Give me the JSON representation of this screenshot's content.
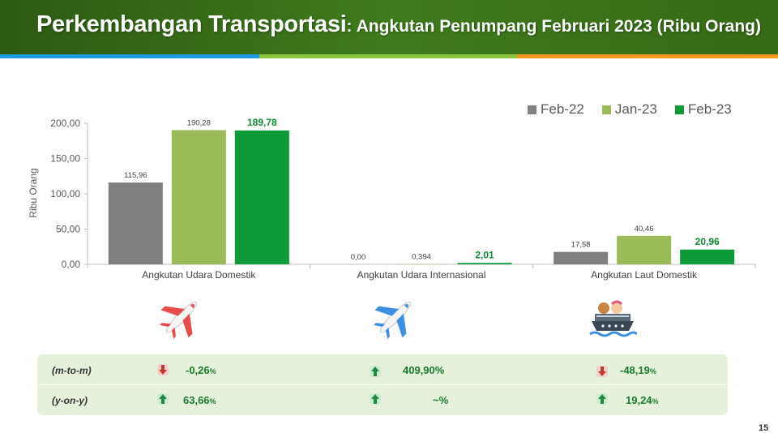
{
  "header": {
    "title_main": "Perkembangan Transportasi",
    "title_sub": ": Angkutan Penumpang Februari 2023 (Ribu Orang)"
  },
  "colors": {
    "feb22": "#7f7f7f",
    "jan23": "#9bbb59",
    "feb23": "#0f9a3a"
  },
  "chart_data": {
    "type": "bar",
    "categories": [
      "Angkutan Udara Domestik",
      "Angkutan Udara Internasional",
      "Angkutan Laut Domestik"
    ],
    "series": [
      {
        "name": "Feb-22",
        "values": [
          115.96,
          0.0,
          17.58
        ],
        "labels": [
          "115,96",
          "0,00",
          "17,58"
        ]
      },
      {
        "name": "Jan-23",
        "values": [
          190.28,
          0.394,
          40.46
        ],
        "labels": [
          "190,28",
          "0,394",
          "40,46"
        ]
      },
      {
        "name": "Feb-23",
        "values": [
          189.78,
          2.01,
          20.96
        ],
        "labels": [
          "189,78",
          "2,01",
          "20,96"
        ]
      }
    ],
    "ylabel": "Ribu Orang",
    "ylim": [
      0,
      200
    ],
    "yticks": [
      "0,00",
      "50,00",
      "100,00",
      "150,00",
      "200,00"
    ],
    "legend_position": "top-right",
    "grid": false
  },
  "icons": [
    "airplane-domestic-icon",
    "airplane-international-icon",
    "passenger-ship-icon"
  ],
  "growth_table": {
    "rows": [
      {
        "label": "(m-to-m)",
        "cells": [
          {
            "dir": "down",
            "value": "-0,26",
            "unit": "%"
          },
          {
            "dir": "up",
            "value": "409,90%",
            "unit": ""
          },
          {
            "dir": "down",
            "value": "-48,19",
            "unit": "%"
          }
        ]
      },
      {
        "label": "(y-on-y)",
        "cells": [
          {
            "dir": "up",
            "value": "63,66",
            "unit": "%"
          },
          {
            "dir": "up",
            "value": "~%",
            "unit": ""
          },
          {
            "dir": "up",
            "value": "19,24",
            "unit": "%"
          }
        ]
      }
    ]
  },
  "page_number": "15"
}
